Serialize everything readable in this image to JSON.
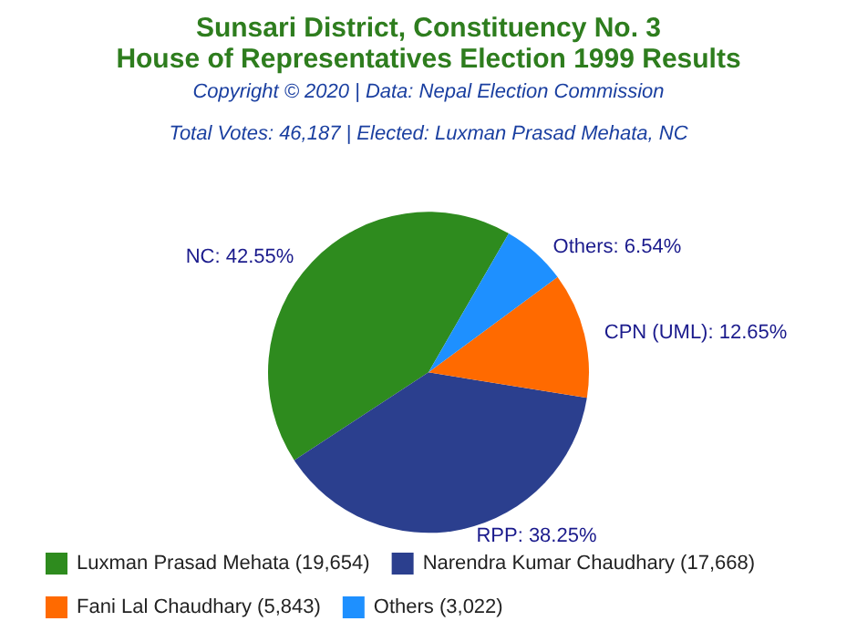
{
  "chart_data": {
    "type": "pie",
    "title": "Sunsari District, Constituency No. 3\nHouse of Representatives Election 1999 Results",
    "subtitle": "Copyright © 2020 | Data: Nepal Election Commission",
    "annotations": [
      "Total Votes: 46,187 | Elected: Luxman Prasad Mehata, NC"
    ],
    "categories": [
      "Luxman Prasad Mehata (19,654)",
      "Narendra Kumar Chaudhary (17,668)",
      "Fani Lal Chaudhary (5,843)",
      "Others (3,022)"
    ],
    "values": [
      42.55,
      38.25,
      12.65,
      6.54
    ],
    "value_labels": [
      "NC: 42.55%",
      "RPP: 38.25%",
      "CPN (UML): 12.65%",
      "Others: 6.54%"
    ],
    "colors": [
      "#2e8b1e",
      "#2b3f8e",
      "#ff6a00",
      "#1e90ff"
    ],
    "legend": "bottom"
  }
}
